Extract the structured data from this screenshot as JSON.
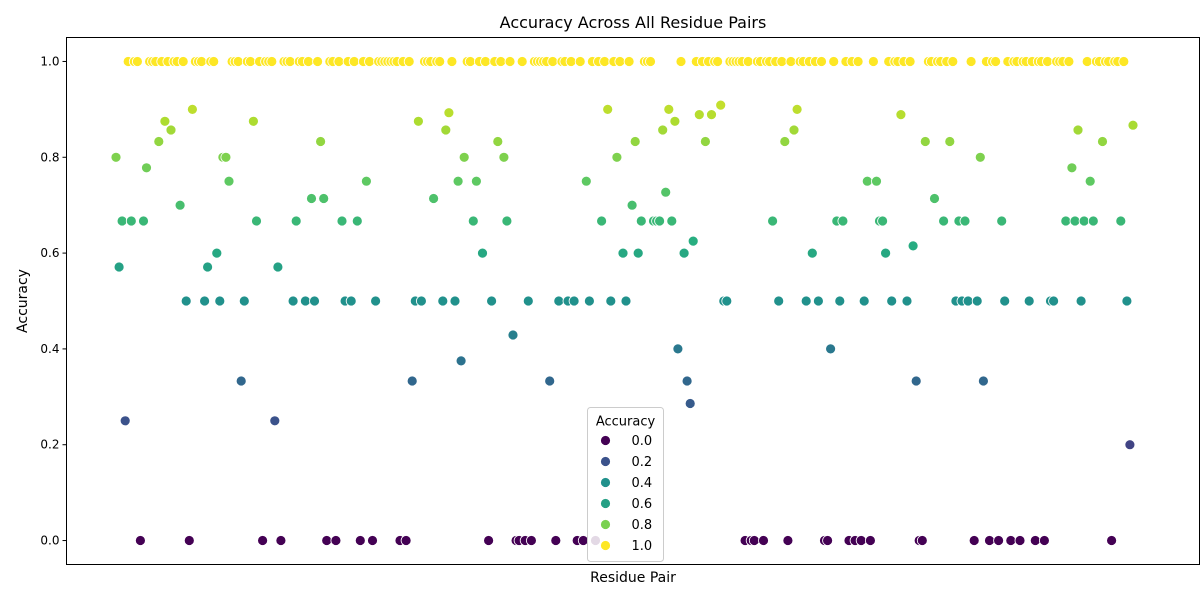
{
  "chart_data": {
    "type": "scatter",
    "title": "Accuracy Across All Residue Pairs",
    "xlabel": "Residue Pair",
    "ylabel": "Accuracy",
    "ylim": [
      -0.05,
      1.05
    ],
    "yticks": [
      "0.0",
      "0.2",
      "0.4",
      "0.6",
      "0.8",
      "1.0"
    ],
    "grid": false,
    "colormap": "viridis",
    "legend": {
      "title": "Accuracy",
      "placement": "lower center",
      "entries": [
        {
          "label": "0.0",
          "color": "#440154"
        },
        {
          "label": "0.2",
          "color": "#3b528b"
        },
        {
          "label": "0.4",
          "color": "#21918c"
        },
        {
          "label": "0.6",
          "color": "#25a085"
        },
        {
          "label": "0.8",
          "color": "#7ad151"
        },
        {
          "label": "1.0",
          "color": "#fde725"
        }
      ]
    },
    "y": [
      0.8,
      0.571,
      0.667,
      0.25,
      1.0,
      0.667,
      1.0,
      1.0,
      0.0,
      0.667,
      0.778,
      1.0,
      1.0,
      1.0,
      0.833,
      1.0,
      0.875,
      1.0,
      0.857,
      1.0,
      1.0,
      0.7,
      1.0,
      0.5,
      0.0,
      0.9,
      1.0,
      1.0,
      1.0,
      0.5,
      0.571,
      1.0,
      1.0,
      0.6,
      0.5,
      0.8,
      0.8,
      0.75,
      1.0,
      1.0,
      1.0,
      0.333,
      0.5,
      1.0,
      1.0,
      0.875,
      0.667,
      1.0,
      0.0,
      1.0,
      1.0,
      1.0,
      0.25,
      0.571,
      0.0,
      1.0,
      1.0,
      1.0,
      0.5,
      0.667,
      1.0,
      1.0,
      0.5,
      1.0,
      0.714,
      0.5,
      1.0,
      0.833,
      0.714,
      0.0,
      1.0,
      1.0,
      0.0,
      1.0,
      0.667,
      0.5,
      1.0,
      0.5,
      1.0,
      0.667,
      0.0,
      1.0,
      0.75,
      1.0,
      0.0,
      0.5,
      1.0,
      1.0,
      1.0,
      1.0,
      1.0,
      1.0,
      1.0,
      0.0,
      1.0,
      0.0,
      1.0,
      0.333,
      0.5,
      0.875,
      0.5,
      1.0,
      1.0,
      1.0,
      0.714,
      1.0,
      1.0,
      0.5,
      0.857,
      0.893,
      1.0,
      0.5,
      0.75,
      0.375,
      0.8,
      1.0,
      1.0,
      0.667,
      0.75,
      1.0,
      0.6,
      1.0,
      0.0,
      0.5,
      1.0,
      0.833,
      1.0,
      0.8,
      0.667,
      1.0,
      0.429,
      0.0,
      0.0,
      1.0,
      0.0,
      0.5,
      0.0,
      1.0,
      1.0,
      1.0,
      1.0,
      1.0,
      0.333,
      1.0,
      0.0,
      0.5,
      1.0,
      1.0,
      0.5,
      1.0,
      0.5,
      0.0,
      1.0,
      0.0,
      0.75,
      0.5,
      1.0,
      0.0,
      1.0,
      0.667,
      1.0,
      0.9,
      0.5,
      1.0,
      0.8,
      1.0,
      0.6,
      0.5,
      1.0,
      0.7,
      0.833,
      0.6,
      0.667,
      1.0,
      1.0,
      1.0,
      0.667,
      0.667,
      0.667,
      0.857,
      0.727,
      0.9,
      0.667,
      0.875,
      0.4,
      1.0,
      0.6,
      0.333,
      0.286,
      0.625,
      1.0,
      0.889,
      1.0,
      0.833,
      1.0,
      0.889,
      1.0,
      1.0,
      0.909,
      0.5,
      0.5,
      1.0,
      1.0,
      1.0,
      1.0,
      1.0,
      0.0,
      1.0,
      0.0,
      0.0,
      1.0,
      1.0,
      0.0,
      1.0,
      1.0,
      0.667,
      1.0,
      0.5,
      1.0,
      0.833,
      0.0,
      1.0,
      0.857,
      0.9,
      1.0,
      1.0,
      0.5,
      1.0,
      0.6,
      1.0,
      0.5,
      1.0,
      0.0,
      0.0,
      0.4,
      1.0,
      0.667,
      0.5,
      0.667,
      1.0,
      0.0,
      1.0,
      0.0,
      1.0,
      0.0,
      0.5,
      0.75,
      0.0,
      1.0,
      0.75,
      0.667,
      0.667,
      0.6,
      1.0,
      0.5,
      1.0,
      1.0,
      0.889,
      1.0,
      0.5,
      1.0,
      0.615,
      0.333,
      0.0,
      0.0,
      0.833,
      1.0,
      1.0,
      0.714,
      1.0,
      1.0,
      0.667,
      1.0,
      0.833,
      1.0,
      0.5,
      0.667,
      0.5,
      0.667,
      0.5,
      1.0,
      0.0,
      0.5,
      0.8,
      0.333,
      1.0,
      0.0,
      1.0,
      1.0,
      0.0,
      0.667,
      0.5,
      1.0,
      0.0,
      1.0,
      1.0,
      0.0,
      1.0,
      1.0,
      0.5,
      1.0,
      0.0,
      1.0,
      1.0,
      0.0,
      1.0,
      0.5,
      0.5,
      1.0,
      1.0,
      1.0,
      0.667,
      1.0,
      0.778,
      0.667,
      0.857,
      0.5,
      0.667,
      1.0,
      0.75,
      0.667,
      1.0,
      1.0,
      0.833,
      1.0,
      1.0,
      0.0,
      1.0,
      1.0,
      0.667,
      1.0,
      0.5,
      0.2,
      0.867
    ]
  }
}
